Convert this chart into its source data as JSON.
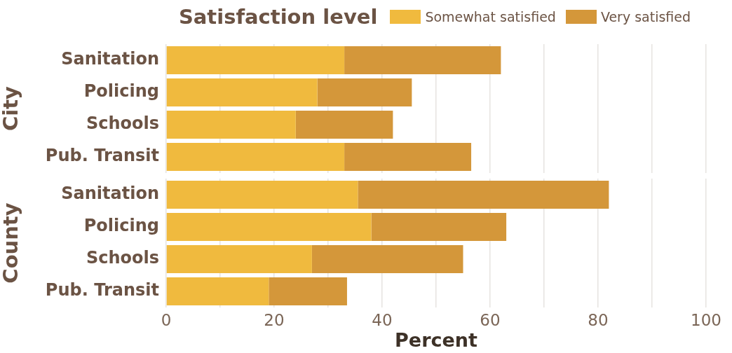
{
  "chart_data": [
    {
      "type": "bar",
      "orientation": "horizontal",
      "stacked": true,
      "legend_title": "Satisfaction level",
      "legend": "top",
      "ylabel": "City",
      "categories": [
        "Sanitation",
        "Policing",
        "Schools",
        "Pub. Transit"
      ],
      "series": [
        {
          "name": "Somewhat satisfied",
          "color": "#f0ba3e",
          "values": [
            33,
            28,
            24,
            33
          ]
        },
        {
          "name": "Very satisfied",
          "color": "#d4973a",
          "values": [
            29,
            17.5,
            18,
            23.5
          ]
        }
      ],
      "xlim": [
        0,
        100
      ],
      "xticks": [
        0,
        {
          "value": 10,
          "label": null
        },
        20,
        {
          "value": 30,
          "label": null
        },
        40,
        {
          "value": 50,
          "label": null
        },
        60,
        {
          "value": 70,
          "label": null
        },
        80,
        {
          "value": 90,
          "label": null
        },
        100
      ],
      "grid": "x",
      "tick_labels": "y"
    },
    {
      "type": "bar",
      "orientation": "horizontal",
      "stacked": true,
      "ylabel": "County",
      "xlabel": "Percent",
      "categories": [
        "Sanitation",
        "Policing",
        "Schools",
        "Pub. Transit"
      ],
      "series": [
        {
          "color": "#f0ba3e",
          "values": [
            35.5,
            38,
            27,
            19
          ]
        },
        {
          "color": "#d4973a",
          "values": [
            46.5,
            25,
            28,
            14.5
          ]
        }
      ],
      "xlim": [
        0,
        100
      ],
      "xticks": [
        0,
        {
          "value": 10,
          "label": null
        },
        20,
        {
          "value": 30,
          "label": null
        },
        40,
        {
          "value": 50,
          "label": null
        },
        60,
        {
          "value": 70,
          "label": null
        },
        80,
        {
          "value": 90,
          "label": null
        },
        100
      ],
      "grid": "x"
    }
  ]
}
